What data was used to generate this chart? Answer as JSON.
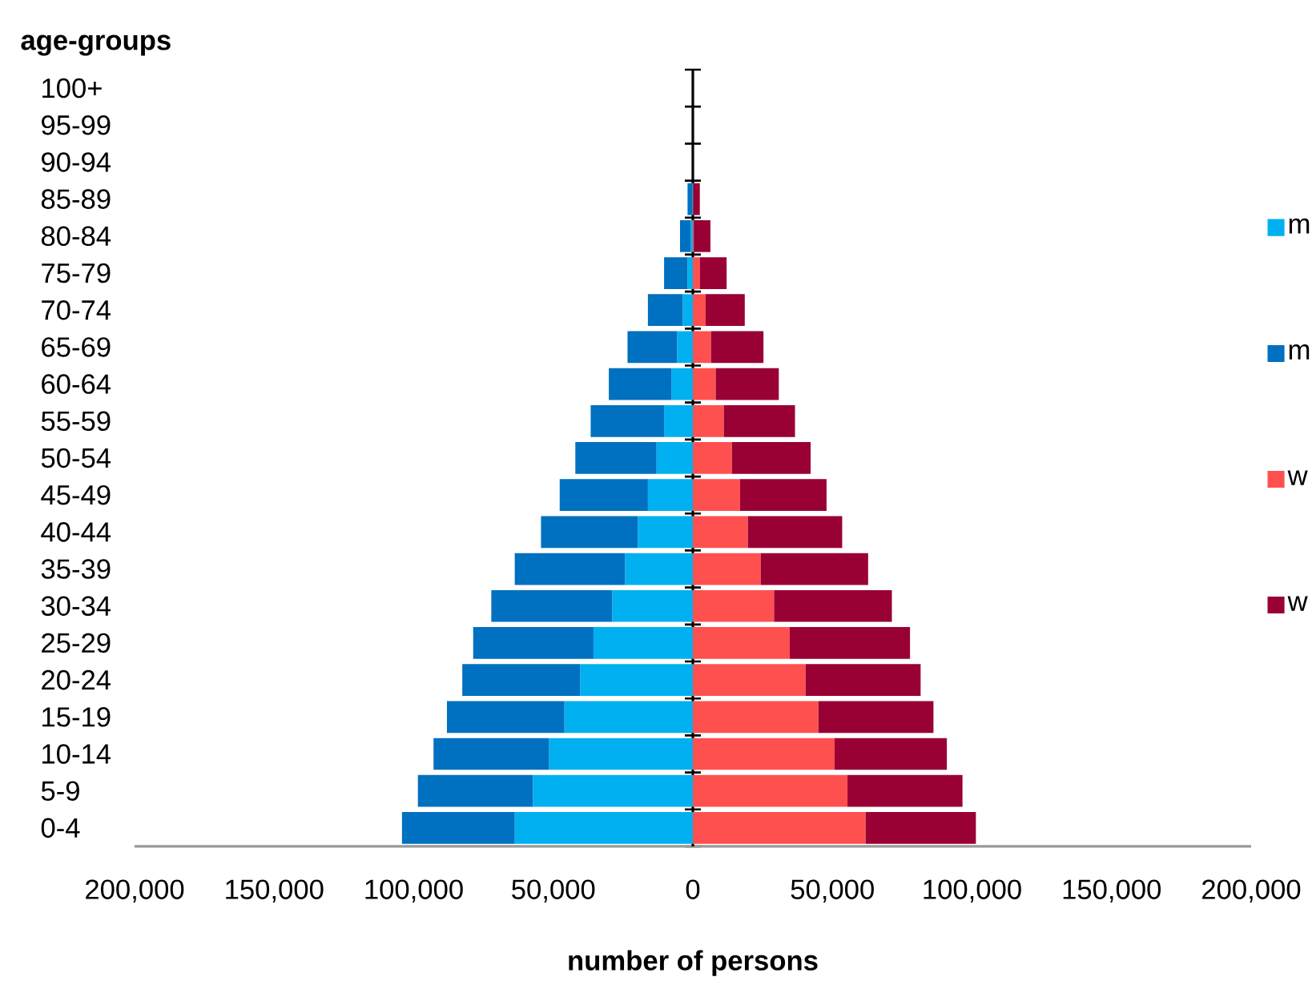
{
  "chart_data": {
    "type": "bar",
    "orientation": "horizontal",
    "stacked": true,
    "xlabel": "number of persons",
    "ylabel": "age-groups",
    "categories": [
      "100+",
      "95-99",
      "90-94",
      "85-89",
      "80-84",
      "75-79",
      "70-74",
      "65-69",
      "60-64",
      "55-59",
      "50-54",
      "45-49",
      "40-44",
      "35-39",
      "30-34",
      "25-29",
      "20-24",
      "15-19",
      "10-14",
      "5-9",
      "0-4"
    ],
    "series": [
      {
        "name": "m",
        "color": "#00b0f0",
        "values": [
          0,
          0,
          0,
          -300,
          -800,
          -1900,
          -3600,
          -5600,
          -7700,
          -10300,
          -13000,
          -16100,
          -19700,
          -24300,
          -28900,
          -35600,
          -40400,
          -46000,
          -51500,
          -57300,
          -63800
        ]
      },
      {
        "name": "m",
        "color": "#0070c0",
        "values": [
          0,
          0,
          0,
          -1600,
          -3800,
          -8400,
          -12500,
          -17800,
          -22400,
          -26300,
          -29100,
          -31600,
          -34700,
          -39500,
          -43300,
          -43100,
          -42200,
          -42100,
          -41400,
          -41200,
          -40400
        ]
      },
      {
        "name": "w",
        "color": "#ff5050",
        "values": [
          0,
          0,
          0,
          200,
          400,
          2500,
          4600,
          6500,
          8200,
          11100,
          14000,
          16900,
          19700,
          24300,
          29100,
          34700,
          40400,
          45000,
          50800,
          55400,
          61900
        ]
      },
      {
        "name": "w",
        "color": "#990033",
        "values": [
          0,
          0,
          0,
          2300,
          5900,
          9600,
          14000,
          18800,
          22600,
          25500,
          28200,
          31000,
          33800,
          38500,
          42200,
          43100,
          41200,
          41200,
          40200,
          41200,
          39500
        ]
      }
    ],
    "xlim": [
      -200000,
      200000
    ],
    "xticks": [
      {
        "value": -200000,
        "label": "200,000"
      },
      {
        "value": -150000,
        "label": "150,000"
      },
      {
        "value": -100000,
        "label": "100,000"
      },
      {
        "value": -50000,
        "label": "50,000"
      },
      0,
      {
        "value": 50000,
        "label": "50,000"
      },
      {
        "value": 100000,
        "label": "100,000"
      },
      {
        "value": 150000,
        "label": "150,000"
      },
      {
        "value": 200000,
        "label": "200,000"
      }
    ],
    "legend": "right"
  }
}
